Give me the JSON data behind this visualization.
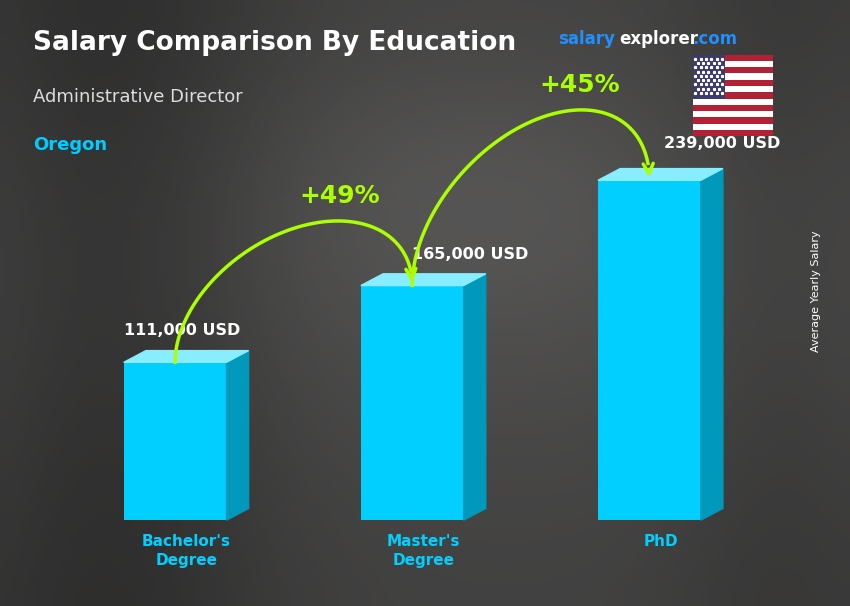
{
  "title": "Salary Comparison By Education",
  "subtitle": "Administrative Director",
  "location": "Oregon",
  "brand_salary": "salary",
  "brand_explorer": "explorer",
  "brand_com": ".com",
  "brand_color_salary": "#1e90ff",
  "brand_color_explorer": "#ffffff",
  "brand_color_com": "#1e90ff",
  "ylabel": "Average Yearly Salary",
  "categories": [
    "Bachelor's\nDegree",
    "Master's\nDegree",
    "PhD"
  ],
  "values": [
    111000,
    165000,
    239000
  ],
  "value_labels": [
    "111,000 USD",
    "165,000 USD",
    "239,000 USD"
  ],
  "pct_labels": [
    "+49%",
    "+45%"
  ],
  "bar_face_color": "#00cfff",
  "bar_side_color": "#0099bb",
  "bar_top_color": "#88eeff",
  "title_color": "#ffffff",
  "subtitle_color": "#dddddd",
  "location_color": "#00ccff",
  "value_label_color": "#ffffff",
  "pct_color": "#aaff00",
  "xtick_color": "#00cfff",
  "arrow_color": "#66ee00",
  "figsize": [
    8.5,
    6.06
  ],
  "dpi": 100
}
